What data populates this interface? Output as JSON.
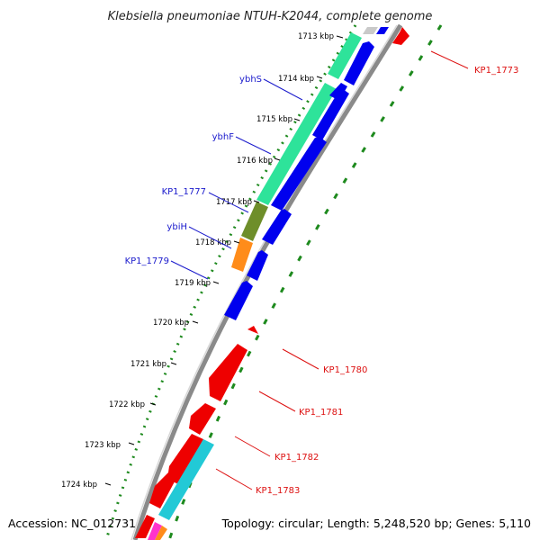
{
  "title": "Klebsiella pneumoniae NTUH-K2044, complete genome",
  "footer": {
    "accession": "Accession: NC_012731",
    "summary": "Topology: circular; Length: 5,248,520 bp; Genes: 5,110"
  },
  "colors": {
    "forward_cds": "#0000ee",
    "reverse_cds": "#ee0000",
    "backbone": "#8a8a8a",
    "dots": "#1e8a1e",
    "label_blue": "#1a1acc",
    "label_red": "#dd1111"
  },
  "ruler": [
    {
      "label": "1713 kbp"
    },
    {
      "label": "1714 kbp"
    },
    {
      "label": "1715 kbp"
    },
    {
      "label": "1716 kbp"
    },
    {
      "label": "1717 kbp"
    },
    {
      "label": "1718 kbp"
    },
    {
      "label": "1719 kbp"
    },
    {
      "label": "1720 kbp"
    },
    {
      "label": "1721 kbp"
    },
    {
      "label": "1722 kbp"
    },
    {
      "label": "1723 kbp"
    },
    {
      "label": "1724 kbp"
    }
  ],
  "gene_labels_left": [
    {
      "label": "ybhS"
    },
    {
      "label": "ybhF"
    },
    {
      "label": "KP1_1777"
    },
    {
      "label": "ybiH"
    },
    {
      "label": "KP1_1779"
    }
  ],
  "gene_labels_right": [
    {
      "label": "KP1_1773"
    },
    {
      "label": "KP1_1780"
    },
    {
      "label": "KP1_1781"
    },
    {
      "label": "KP1_1782"
    },
    {
      "label": "KP1_1783"
    }
  ]
}
